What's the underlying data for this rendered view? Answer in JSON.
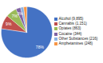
{
  "chart_data": {
    "type": "pie",
    "categories": [
      "Alcohol (9,895)",
      "Cannabis (1,151)",
      "Opiates (863)",
      "Cocaine (344)",
      "Other Substances (216)",
      "Amphetamines (248)"
    ],
    "values": [
      78,
      9,
      7,
      3,
      2,
      2
    ],
    "value_labels": [
      "78%",
      "9%",
      "7%",
      "3%",
      null,
      null
    ],
    "colors": [
      "#4472c4",
      "#c0504d",
      "#9bbb59",
      "#8064a2",
      "#8db3e2",
      "#f79646"
    ],
    "data_labels": true,
    "legend": "right"
  }
}
